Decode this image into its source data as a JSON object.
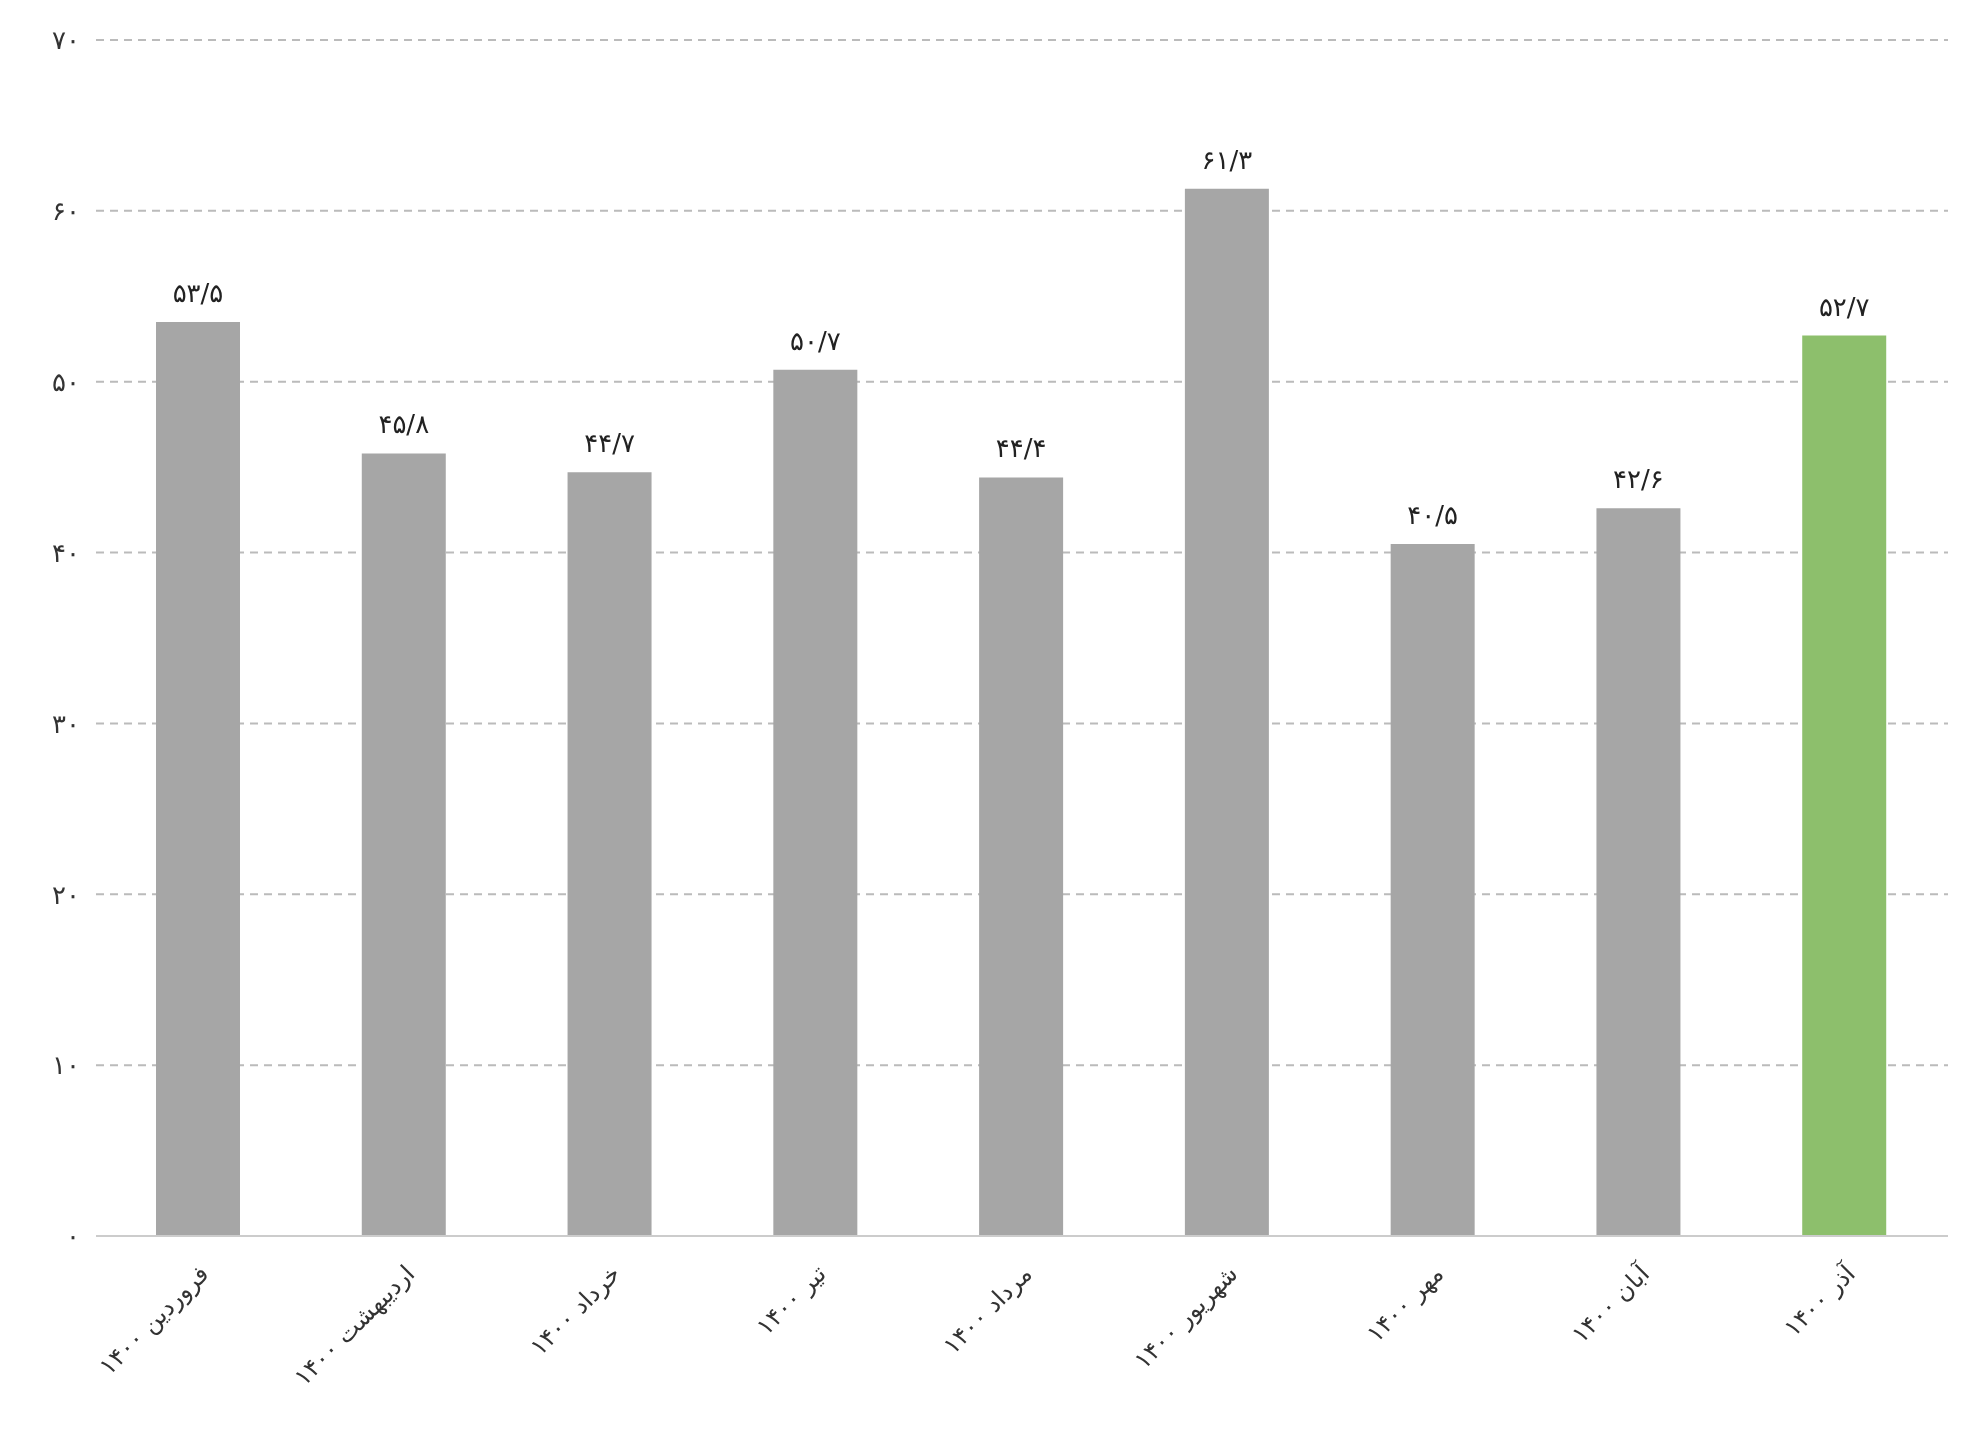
{
  "chart_data": {
    "type": "bar",
    "categories": [
      "فروردین ۱۴۰۰",
      "اردیبهشت ۱۴۰۰",
      "خرداد ۱۴۰۰",
      "تیر ۱۴۰۰",
      "مرداد ۱۴۰۰",
      "شهریور ۱۴۰۰",
      "مهر ۱۴۰۰",
      "آبان ۱۴۰۰",
      "آذر ۱۴۰۰"
    ],
    "values": [
      53.5,
      45.8,
      44.7,
      50.7,
      44.4,
      61.3,
      40.5,
      42.6,
      52.7
    ],
    "value_labels": [
      "۵۳/۵",
      "۴۵/۸",
      "۴۴/۷",
      "۵۰/۷",
      "۴۴/۴",
      "۶۱/۳",
      "۴۰/۵",
      "۴۲/۶",
      "۵۲/۷"
    ],
    "colors": [
      "#a6a6a6",
      "#a6a6a6",
      "#a6a6a6",
      "#a6a6a6",
      "#a6a6a6",
      "#a6a6a6",
      "#a6a6a6",
      "#a6a6a6",
      "#8dbf6c"
    ],
    "ylim": [
      0,
      70
    ],
    "yticks": [
      {
        "value": 0,
        "label": "۰"
      },
      {
        "value": 10,
        "label": "۱۰"
      },
      {
        "value": 20,
        "label": "۲۰"
      },
      {
        "value": 30,
        "label": "۳۰"
      },
      {
        "value": 40,
        "label": "۴۰"
      },
      {
        "value": 50,
        "label": "۵۰"
      },
      {
        "value": 60,
        "label": "۶۰"
      },
      {
        "value": 70,
        "label": "۷۰"
      }
    ],
    "grid": "y"
  }
}
